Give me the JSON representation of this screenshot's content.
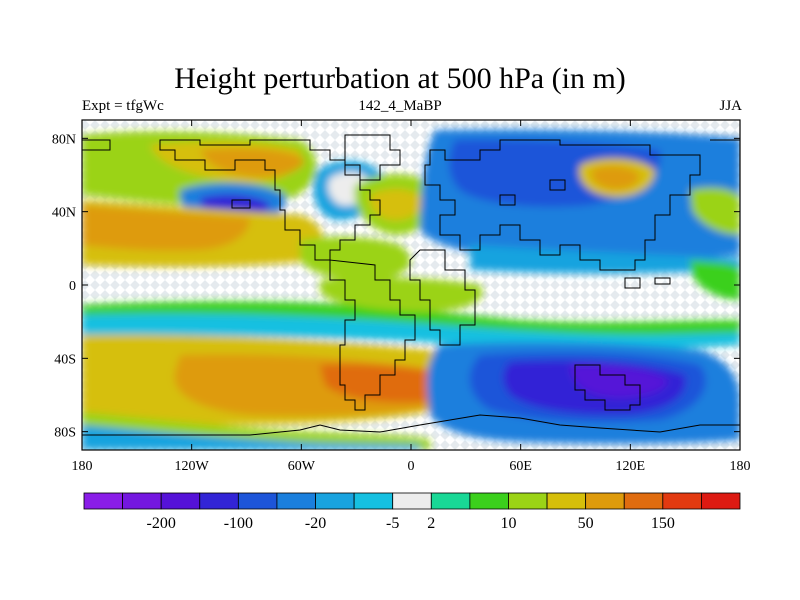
{
  "title": "Height perturbation at 500 hPa (in m)",
  "subtitle_left": "Expt = tfgWc",
  "subtitle_center": "142_4_MaBP",
  "subtitle_right": "JJA",
  "map": {
    "projection": "cylindrical-equidistant",
    "lon_range": [
      -180,
      180
    ],
    "lat_range": [
      -90,
      90
    ],
    "lon_ticks": [
      {
        "value": -180,
        "label": "180"
      },
      {
        "value": -120,
        "label": "120W"
      },
      {
        "value": -60,
        "label": "60W"
      },
      {
        "value": 0,
        "label": "0"
      },
      {
        "value": 60,
        "label": "60E"
      },
      {
        "value": 120,
        "label": "120E"
      },
      {
        "value": 180,
        "label": "180"
      }
    ],
    "lat_ticks": [
      {
        "value": 80,
        "label": "80N"
      },
      {
        "value": 40,
        "label": "40N"
      },
      {
        "value": 0,
        "label": "0"
      },
      {
        "value": -40,
        "label": "40S"
      },
      {
        "value": -80,
        "label": "80S"
      }
    ]
  },
  "colorbar": {
    "colors": [
      "#8a1de8",
      "#7417e0",
      "#5512d8",
      "#3224d6",
      "#1d55d9",
      "#1a7fdd",
      "#19a3df",
      "#16c0e1",
      "#ededed",
      "#19d896",
      "#3bd01c",
      "#9bd316",
      "#d6bf0a",
      "#de9b0c",
      "#e06c0f",
      "#e23a10",
      "#dd1a12"
    ],
    "labels": [
      {
        "after_index": 1,
        "text": "-200"
      },
      {
        "after_index": 3,
        "text": "-100"
      },
      {
        "after_index": 5,
        "text": "-20"
      },
      {
        "after_index": 7,
        "text": "-5"
      },
      {
        "after_index": 8,
        "text": "2"
      },
      {
        "after_index": 10,
        "text": "10"
      },
      {
        "after_index": 12,
        "text": "50"
      },
      {
        "after_index": 14,
        "text": "150"
      }
    ]
  }
}
